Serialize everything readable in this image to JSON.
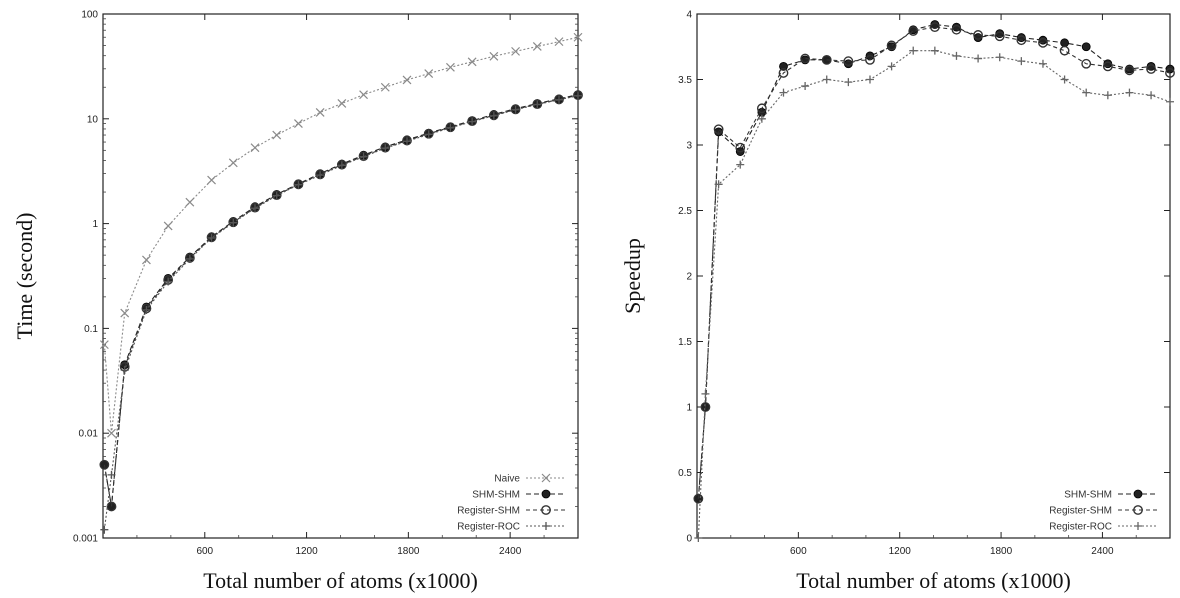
{
  "chart_data": [
    {
      "type": "line",
      "xlabel": "Total number of atoms (x1000)",
      "ylabel": "Time (second)",
      "xlim": [
        0,
        2800
      ],
      "ylim": [
        0.001,
        100
      ],
      "yscale": "log",
      "xticks": [
        600,
        1200,
        1800,
        2400
      ],
      "xtick_labels": [
        "600",
        "1200",
        "1800",
        "2400"
      ],
      "yticks": [
        0.001,
        0.01,
        0.1,
        1,
        10,
        100
      ],
      "ytick_labels": [
        "0.001",
        "0.01",
        "0.1",
        "1",
        "10",
        "100"
      ],
      "grid": false,
      "legend_position": "bottom-right",
      "x": [
        8,
        50,
        128,
        256,
        384,
        512,
        640,
        768,
        896,
        1024,
        1152,
        1280,
        1408,
        1536,
        1664,
        1792,
        1920,
        2048,
        2176,
        2304,
        2432,
        2560,
        2688,
        2800
      ],
      "series": [
        {
          "name": "Naive",
          "color": "#8a8a8a",
          "marker": "x",
          "dash": "2,2",
          "values": [
            0.07,
            0.01,
            0.14,
            0.45,
            0.95,
            1.6,
            2.6,
            3.8,
            5.3,
            7.0,
            9.0,
            11.5,
            14.0,
            17.0,
            20.0,
            23.5,
            27.0,
            31.0,
            35.0,
            39.5,
            44.0,
            49.0,
            54.5,
            60.0
          ]
        },
        {
          "name": "SHM-SHM",
          "color": "#222222",
          "marker": "dot",
          "dash": "5,3",
          "values": [
            0.005,
            0.002,
            0.045,
            0.16,
            0.3,
            0.48,
            0.75,
            1.05,
            1.45,
            1.9,
            2.4,
            3.0,
            3.7,
            4.5,
            5.4,
            6.3,
            7.3,
            8.4,
            9.6,
            11.0,
            12.5,
            14.0,
            15.5,
            17.0
          ]
        },
        {
          "name": "Register-SHM",
          "color": "#333333",
          "marker": "circle",
          "dash": "4,3",
          "values": [
            0.005,
            0.002,
            0.043,
            0.155,
            0.29,
            0.47,
            0.74,
            1.03,
            1.42,
            1.87,
            2.37,
            2.95,
            3.65,
            4.4,
            5.3,
            6.2,
            7.2,
            8.3,
            9.5,
            10.8,
            12.3,
            13.8,
            15.3,
            16.8
          ]
        },
        {
          "name": "Register-ROC",
          "color": "#555555",
          "marker": "plus",
          "dash": "2,2",
          "values": [
            0.0012,
            0.004,
            0.04,
            0.15,
            0.28,
            0.46,
            0.73,
            1.02,
            1.4,
            1.85,
            2.35,
            2.9,
            3.6,
            4.35,
            5.25,
            6.1,
            7.1,
            8.2,
            9.4,
            10.7,
            12.2,
            13.7,
            15.2,
            16.6
          ]
        }
      ]
    },
    {
      "type": "line",
      "xlabel": "Total number of atoms (x1000)",
      "ylabel": "Speedup",
      "xlim": [
        0,
        2800
      ],
      "ylim": [
        0,
        4
      ],
      "yscale": "linear",
      "xticks": [
        600,
        1200,
        1800,
        2400
      ],
      "xtick_labels": [
        "600",
        "1200",
        "1800",
        "2400"
      ],
      "yticks": [
        0,
        0.5,
        1,
        1.5,
        2,
        2.5,
        3,
        3.5,
        4
      ],
      "ytick_labels": [
        "0",
        "0.5",
        "1",
        "1.5",
        "2",
        "2.5",
        "3",
        "3.5",
        "4"
      ],
      "grid": false,
      "legend_position": "bottom-right",
      "x": [
        8,
        50,
        128,
        256,
        384,
        512,
        640,
        768,
        896,
        1024,
        1152,
        1280,
        1408,
        1536,
        1664,
        1792,
        1920,
        2048,
        2176,
        2304,
        2432,
        2560,
        2688,
        2800
      ],
      "series": [
        {
          "name": "SHM-SHM",
          "color": "#222222",
          "marker": "dot",
          "dash": "5,3",
          "values": [
            0.3,
            1.0,
            3.1,
            2.95,
            3.25,
            3.6,
            3.65,
            3.65,
            3.62,
            3.68,
            3.75,
            3.88,
            3.92,
            3.9,
            3.82,
            3.85,
            3.82,
            3.8,
            3.78,
            3.75,
            3.62,
            3.58,
            3.6,
            3.58
          ]
        },
        {
          "name": "Register-SHM",
          "color": "#333333",
          "marker": "circle",
          "dash": "4,3",
          "values": [
            0.3,
            1.0,
            3.12,
            2.98,
            3.28,
            3.55,
            3.66,
            3.65,
            3.64,
            3.65,
            3.76,
            3.87,
            3.9,
            3.88,
            3.84,
            3.83,
            3.8,
            3.78,
            3.72,
            3.62,
            3.6,
            3.57,
            3.58,
            3.55
          ]
        },
        {
          "name": "Register-ROC",
          "color": "#666666",
          "marker": "plus",
          "dash": "2,2",
          "values": [
            0.0,
            1.1,
            2.7,
            2.85,
            3.2,
            3.4,
            3.45,
            3.5,
            3.48,
            3.5,
            3.6,
            3.72,
            3.72,
            3.68,
            3.66,
            3.67,
            3.64,
            3.62,
            3.5,
            3.4,
            3.38,
            3.4,
            3.38,
            3.33
          ]
        }
      ]
    }
  ]
}
